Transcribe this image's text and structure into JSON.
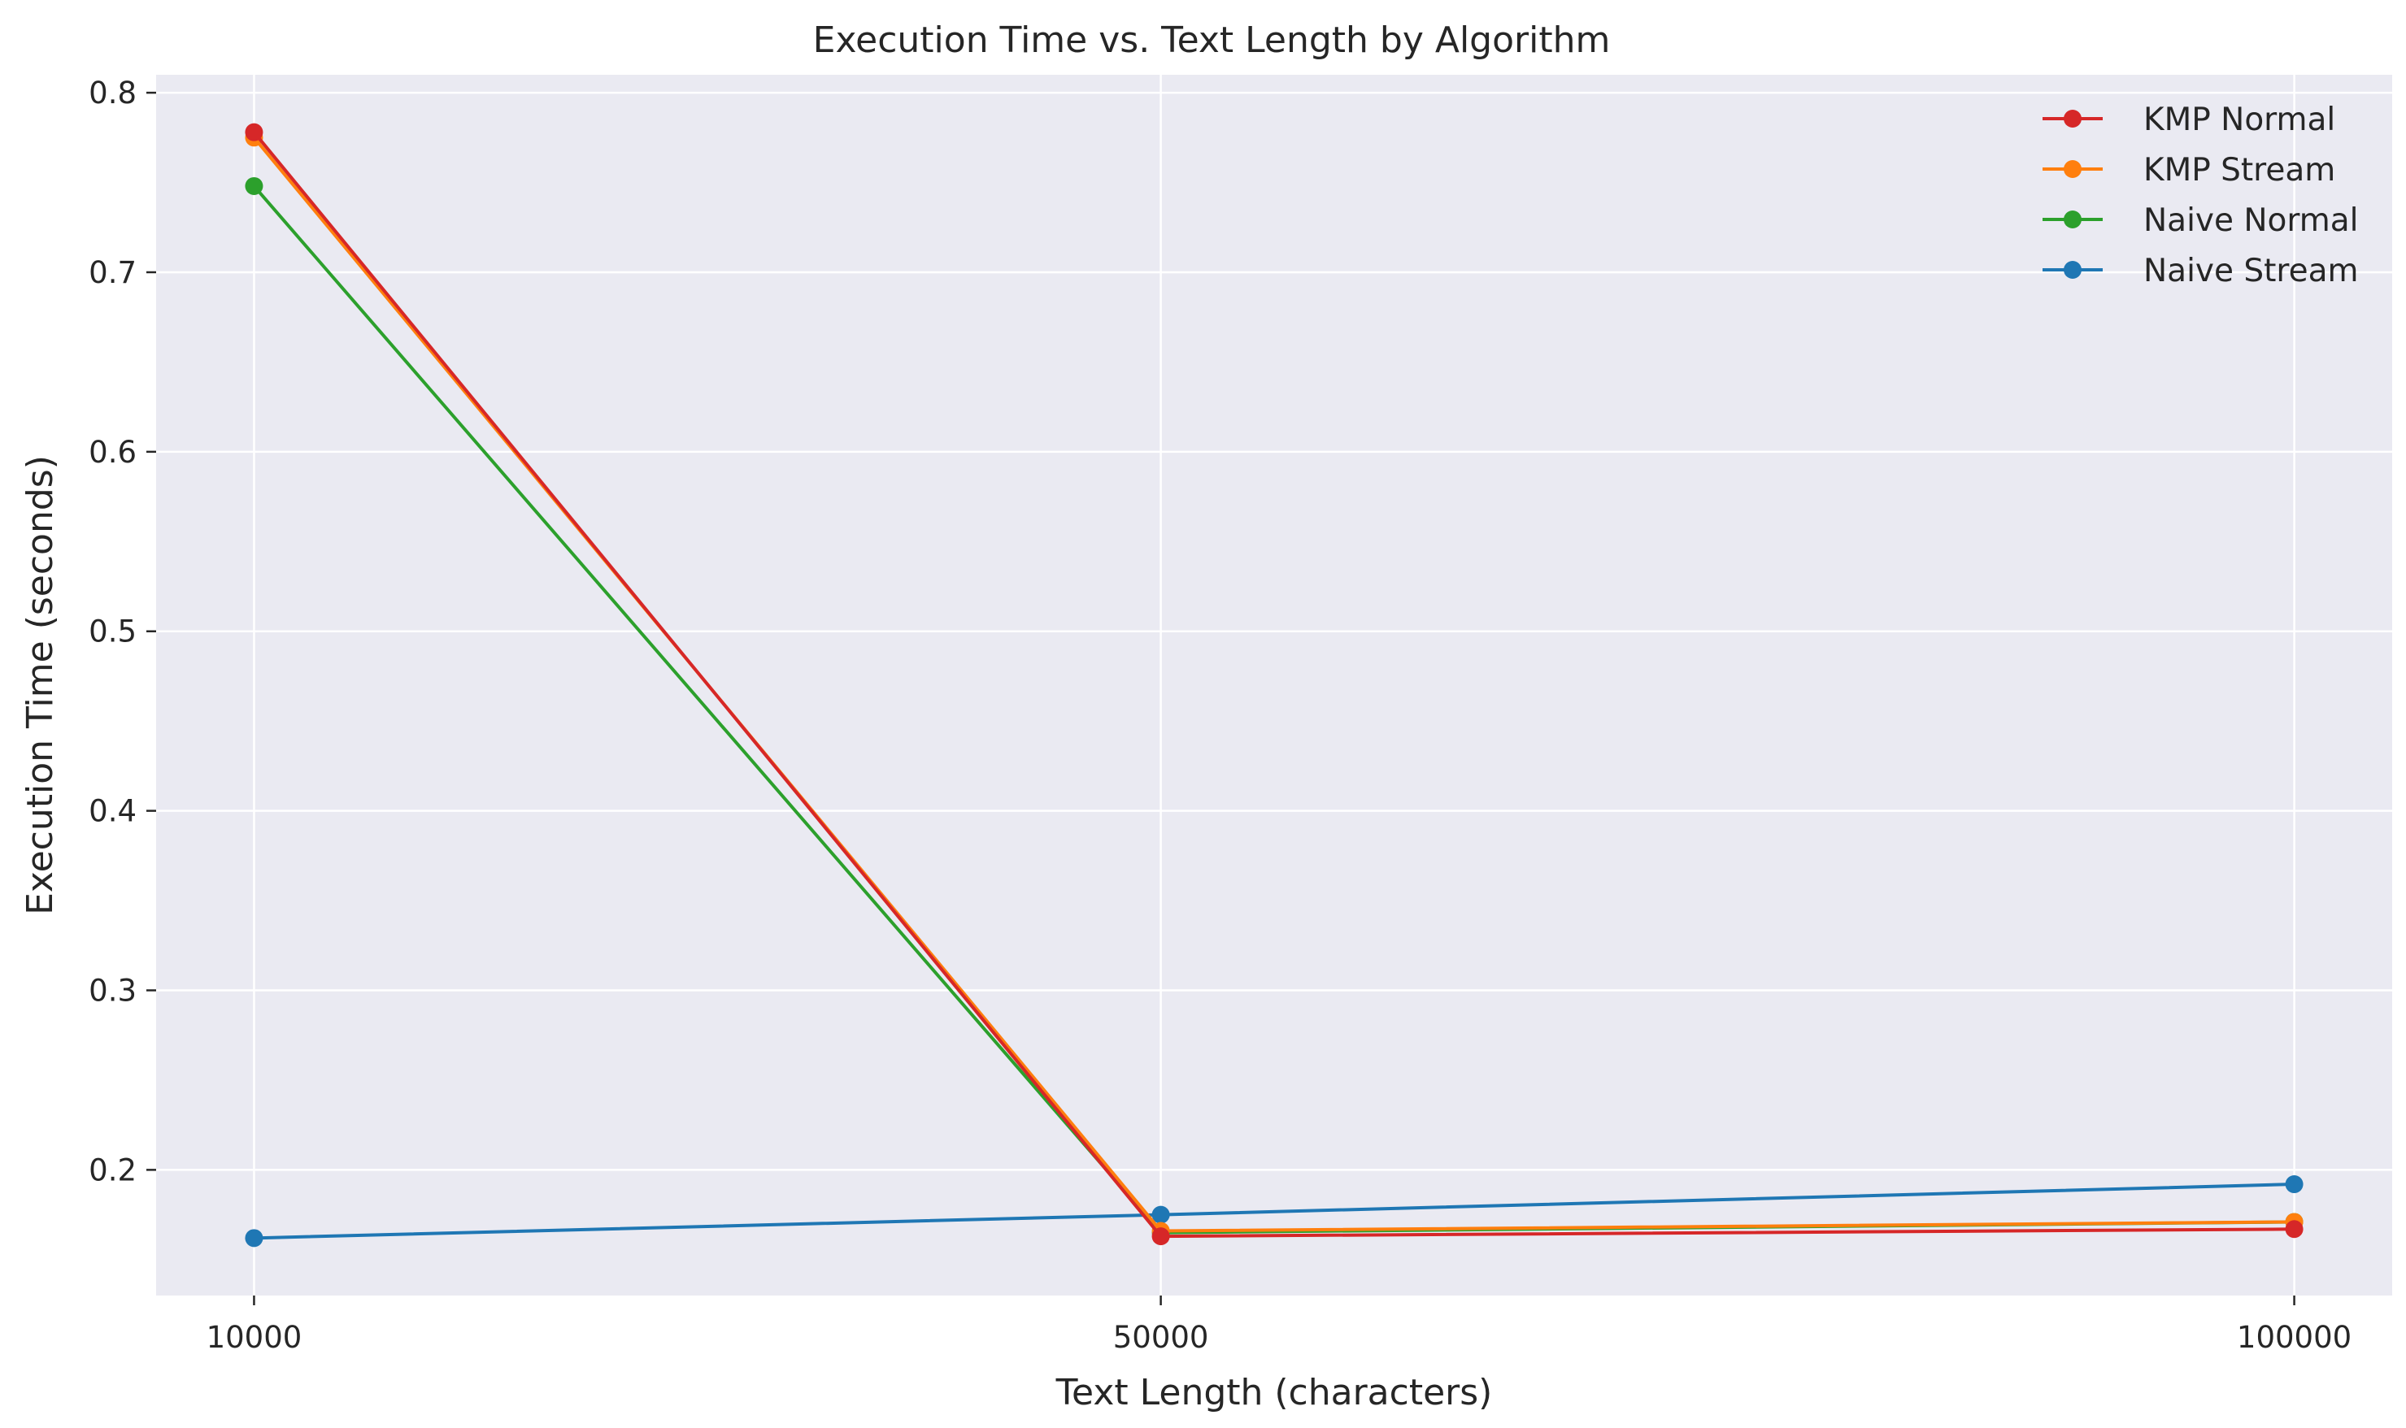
{
  "chart_data": {
    "type": "line",
    "title": "Execution Time vs. Text Length by Algorithm",
    "xlabel": "Text Length (characters)",
    "ylabel": "Execution Time (seconds)",
    "x": [
      10000,
      50000,
      100000
    ],
    "x_tick_labels": [
      "10000",
      "50000",
      "100000"
    ],
    "ylim": [
      0.13,
      0.81
    ],
    "y_ticks": [
      0.2,
      0.3,
      0.4,
      0.5,
      0.6,
      0.7,
      0.8
    ],
    "y_tick_labels": [
      "0.2",
      "0.3",
      "0.4",
      "0.5",
      "0.6",
      "0.7",
      "0.8"
    ],
    "grid": true,
    "legend_position": "top-right",
    "series": [
      {
        "name": "KMP Normal",
        "color": "#d62728",
        "values": [
          0.778,
          0.163,
          0.167
        ]
      },
      {
        "name": "KMP Stream",
        "color": "#ff7f0e",
        "values": [
          0.775,
          0.166,
          0.171
        ]
      },
      {
        "name": "Naive Normal",
        "color": "#2ca02c",
        "values": [
          0.748,
          0.165,
          0.171
        ]
      },
      {
        "name": "Naive Stream",
        "color": "#1f77b4",
        "values": [
          0.162,
          0.175,
          0.192
        ]
      }
    ]
  }
}
